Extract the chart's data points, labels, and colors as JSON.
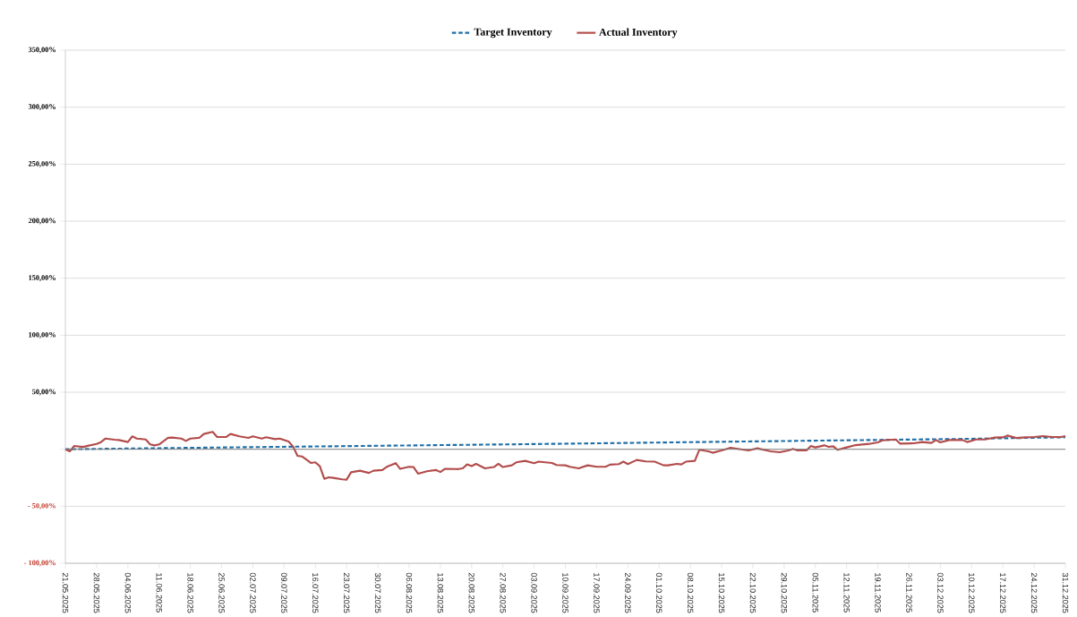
{
  "chart_data": {
    "type": "line",
    "x": [
      "2025-05-21",
      "2025-05-22",
      "2025-05-23",
      "2025-05-25",
      "2025-05-26",
      "2025-05-28",
      "2025-05-29",
      "2025-05-30",
      "2025-06-01",
      "2025-06-02",
      "2025-06-04",
      "2025-06-05",
      "2025-06-06",
      "2025-06-08",
      "2025-06-09",
      "2025-06-10",
      "2025-06-11",
      "2025-06-13",
      "2025-06-14",
      "2025-06-16",
      "2025-06-17",
      "2025-06-18",
      "2025-06-20",
      "2025-06-21",
      "2025-06-23",
      "2025-06-24",
      "2025-06-26",
      "2025-06-27",
      "2025-06-29",
      "2025-07-01",
      "2025-07-02",
      "2025-07-04",
      "2025-07-05",
      "2025-07-07",
      "2025-07-08",
      "2025-07-10",
      "2025-07-11",
      "2025-07-12",
      "2025-07-13",
      "2025-07-15",
      "2025-07-16",
      "2025-07-17",
      "2025-07-18",
      "2025-07-19",
      "2025-07-20",
      "2025-07-22",
      "2025-07-23",
      "2025-07-24",
      "2025-07-26",
      "2025-07-28",
      "2025-07-29",
      "2025-07-31",
      "2025-08-01",
      "2025-08-03",
      "2025-08-04",
      "2025-08-06",
      "2025-08-07",
      "2025-08-08",
      "2025-08-10",
      "2025-08-12",
      "2025-08-13",
      "2025-08-14",
      "2025-08-17",
      "2025-08-18",
      "2025-08-19",
      "2025-08-20",
      "2025-08-21",
      "2025-08-23",
      "2025-08-25",
      "2025-08-26",
      "2025-08-27",
      "2025-08-29",
      "2025-08-30",
      "2025-09-01",
      "2025-09-03",
      "2025-09-04",
      "2025-09-07",
      "2025-09-08",
      "2025-09-10",
      "2025-09-11",
      "2025-09-13",
      "2025-09-15",
      "2025-09-17",
      "2025-09-19",
      "2025-09-20",
      "2025-09-22",
      "2025-09-23",
      "2025-09-24",
      "2025-09-26",
      "2025-09-28",
      "2025-09-30",
      "2025-10-02",
      "2025-10-03",
      "2025-10-05",
      "2025-10-06",
      "2025-10-07",
      "2025-10-09",
      "2025-10-10",
      "2025-10-12",
      "2025-10-13",
      "2025-10-15",
      "2025-10-17",
      "2025-10-21",
      "2025-10-23",
      "2025-10-26",
      "2025-10-28",
      "2025-10-30",
      "2025-10-31",
      "2025-11-01",
      "2025-11-03",
      "2025-11-04",
      "2025-11-05",
      "2025-11-07",
      "2025-11-08",
      "2025-11-09",
      "2025-11-10",
      "2025-11-12",
      "2025-11-14",
      "2025-11-17",
      "2025-11-19",
      "2025-11-20",
      "2025-11-23",
      "2025-11-24",
      "2025-11-27",
      "2025-11-29",
      "2025-12-01",
      "2025-12-02",
      "2025-12-03",
      "2025-12-05",
      "2025-12-08",
      "2025-12-09",
      "2025-12-11",
      "2025-12-13",
      "2025-12-15",
      "2025-12-17",
      "2025-12-18",
      "2025-12-20",
      "2025-12-22",
      "2025-12-24",
      "2025-12-26",
      "2025-12-28",
      "2025-12-30",
      "2025-12-31"
    ],
    "series": [
      {
        "name": "Target Inventory",
        "color": "#1f6ea6",
        "line_style": "dashed",
        "x": [
          "2025-05-21",
          "2025-07-10",
          "2025-08-29",
          "2025-10-18",
          "2025-12-07",
          "2025-12-31"
        ],
        "values": [
          0,
          2.2,
          4.3,
          6.7,
          9,
          10.5
        ]
      },
      {
        "name": "Actual Inventory",
        "color": "#b24c4b",
        "line_style": "solid",
        "values": [
          0,
          -1.8,
          2.9,
          2,
          3,
          4.7,
          6.3,
          9.4,
          8.4,
          8.1,
          6.3,
          11.3,
          9.4,
          8.6,
          4.2,
          3.4,
          4.2,
          10,
          10.2,
          9.4,
          7.3,
          9.4,
          10,
          13.4,
          15.2,
          10.7,
          10.7,
          13.4,
          11.3,
          10,
          11.3,
          9.4,
          10.5,
          8.9,
          9.4,
          6.8,
          2.4,
          -5.8,
          -6.3,
          -12,
          -11.5,
          -14.9,
          -25.9,
          -24.6,
          -25.1,
          -26.4,
          -26.7,
          -20.2,
          -18.8,
          -20.8,
          -18.8,
          -18.2,
          -15.4,
          -12.2,
          -17.2,
          -15.4,
          -15.6,
          -21.4,
          -19.3,
          -18.2,
          -20,
          -17.2,
          -17.4,
          -16.7,
          -13.3,
          -14.8,
          -12.8,
          -16.7,
          -15.6,
          -12.8,
          -15.6,
          -14.1,
          -11.5,
          -10.2,
          -12.2,
          -10.9,
          -12,
          -13.8,
          -14.1,
          -15.4,
          -16.7,
          -14.1,
          -15.4,
          -15.4,
          -13.5,
          -13,
          -10.9,
          -13,
          -9.4,
          -10.7,
          -10.9,
          -14.1,
          -14.1,
          -12.8,
          -13.3,
          -10.9,
          -10.2,
          -0.5,
          -1.8,
          -3.1,
          -1,
          1.3,
          -1,
          0.8,
          -1.8,
          -2.6,
          -1,
          0.3,
          -1,
          -1,
          2.9,
          1.6,
          3.4,
          2.1,
          2.6,
          -0.5,
          1.6,
          3.6,
          4.7,
          6,
          7.8,
          8.6,
          4.9,
          5.2,
          6.3,
          5.5,
          8.1,
          6,
          8.1,
          8.1,
          6.3,
          8.6,
          8.6,
          10.2,
          10.4,
          12,
          9.9,
          10.4,
          10.7,
          11.5,
          10.7,
          10.7,
          11.5
        ]
      }
    ],
    "xlim": [
      "2025-05-21",
      "2025-12-31"
    ],
    "xticks": [
      {
        "value": "2025-05-21",
        "label": "21.05.2025"
      },
      {
        "value": "2025-05-28",
        "label": "28.05.2025"
      },
      {
        "value": "2025-06-04",
        "label": "04.06.2025"
      },
      {
        "value": "2025-06-11",
        "label": "11.06.2025"
      },
      {
        "value": "2025-06-18",
        "label": "18.06.2025"
      },
      {
        "value": "2025-06-25",
        "label": "25.06.2025"
      },
      {
        "value": "2025-07-02",
        "label": "02.07.2025"
      },
      {
        "value": "2025-07-09",
        "label": "09.07.2025"
      },
      {
        "value": "2025-07-16",
        "label": "16.07.2025"
      },
      {
        "value": "2025-07-23",
        "label": "23.07.2025"
      },
      {
        "value": "2025-07-30",
        "label": "30.07.2025"
      },
      {
        "value": "2025-08-06",
        "label": "06.08.2025"
      },
      {
        "value": "2025-08-13",
        "label": "13.08.2025"
      },
      {
        "value": "2025-08-20",
        "label": "20.08.2025"
      },
      {
        "value": "2025-08-27",
        "label": "27.08.2025"
      },
      {
        "value": "2025-09-03",
        "label": "03.09.2025"
      },
      {
        "value": "2025-09-10",
        "label": "10.09.2025"
      },
      {
        "value": "2025-09-17",
        "label": "17.09.2025"
      },
      {
        "value": "2025-09-24",
        "label": "24.09.2025"
      },
      {
        "value": "2025-10-01",
        "label": "01.10.2025"
      },
      {
        "value": "2025-10-08",
        "label": "08.10.2025"
      },
      {
        "value": "2025-10-15",
        "label": "15.10.2025"
      },
      {
        "value": "2025-10-22",
        "label": "22.10.2025"
      },
      {
        "value": "2025-10-29",
        "label": "29.10.2025"
      },
      {
        "value": "2025-11-05",
        "label": "05.11.2025"
      },
      {
        "value": "2025-11-12",
        "label": "12.11.2025"
      },
      {
        "value": "2025-11-19",
        "label": "19.11.2025"
      },
      {
        "value": "2025-11-26",
        "label": "26.11.2025"
      },
      {
        "value": "2025-12-03",
        "label": "03.12.2025"
      },
      {
        "value": "2025-12-10",
        "label": "10.12.2025"
      },
      {
        "value": "2025-12-17",
        "label": "17.12.2025"
      },
      {
        "value": "2025-12-24",
        "label": "24.12.2025"
      },
      {
        "value": "2025-12-31",
        "label": "31.12.2025"
      }
    ],
    "ylim": [
      -100,
      350
    ],
    "yticks": [
      {
        "value": -100,
        "label": "- 100,00%"
      },
      {
        "value": -50,
        "label": "- 50,00%"
      },
      {
        "value": 0,
        "label": null
      },
      {
        "value": 50,
        "label": "50,00%"
      },
      {
        "value": 100,
        "label": "100,00%"
      },
      {
        "value": 150,
        "label": "150,00%"
      },
      {
        "value": 200,
        "label": "200,00%"
      },
      {
        "value": 250,
        "label": "250,00%"
      },
      {
        "value": 300,
        "label": "300,00%"
      },
      {
        "value": 350,
        "label": "350,00%"
      }
    ],
    "ref_lines": [
      {
        "axis": "y",
        "value": 0,
        "color": "#7f7f7f"
      }
    ],
    "grid": "y",
    "legend": "top"
  }
}
